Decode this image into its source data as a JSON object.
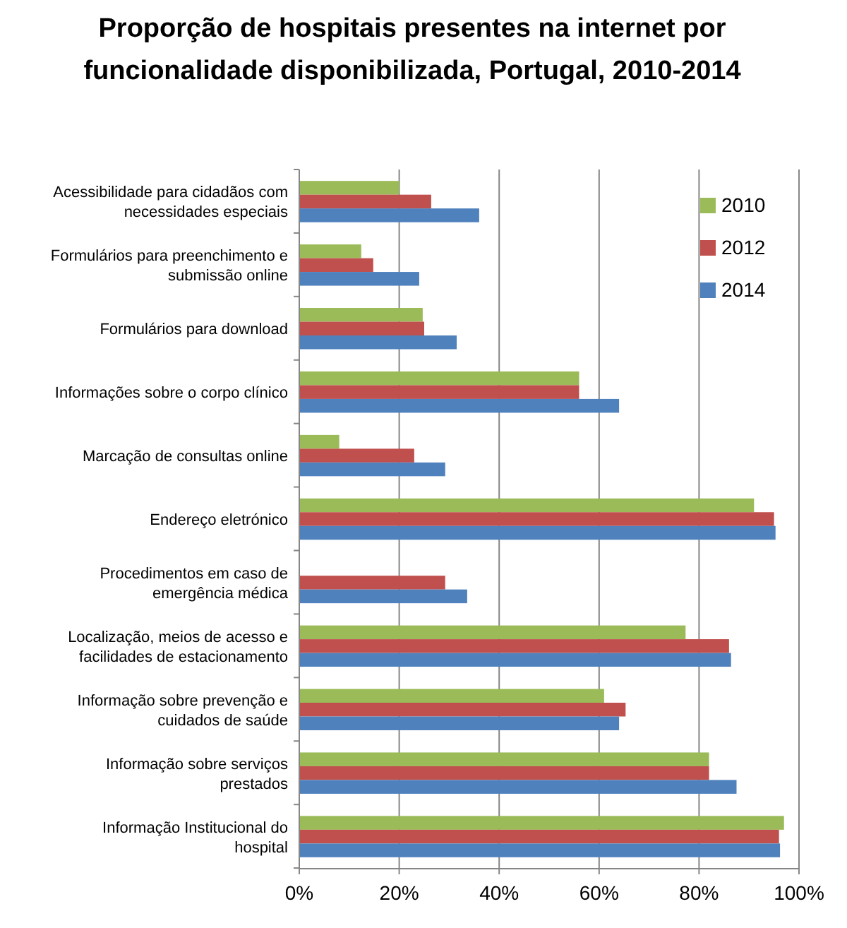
{
  "chart_data": {
    "type": "bar",
    "orientation": "horizontal",
    "title": "Proporção de hospitais presentes na internet por funcionalidade disponibilizada, Portugal, 2010-2014",
    "categories": [
      "Acessibilidade para cidadãos com necessidades especiais",
      "Formulários para preenchimento e submissão online",
      "Formulários para download",
      "Informações sobre o corpo clínico",
      "Marcação de consultas online",
      "Endereço eletrónico",
      "Procedimentos em caso de emergência médica",
      "Localização, meios de acesso e facilidades de estacionamento",
      "Informação sobre prevenção e cuidados de saúde",
      "Informação sobre serviços prestados",
      "Informação Institucional do hospital"
    ],
    "series": [
      {
        "name": "2010",
        "color": "#9bbb59",
        "values": [
          20,
          12.4,
          24.7,
          56,
          8,
          91,
          null,
          77.3,
          61,
          82,
          97
        ]
      },
      {
        "name": "2012",
        "color": "#c0504d",
        "values": [
          26.4,
          14.8,
          25,
          56,
          23,
          95,
          29.2,
          86,
          65.3,
          82,
          96
        ]
      },
      {
        "name": "2014",
        "color": "#4f81bd",
        "values": [
          36,
          24,
          31.5,
          64,
          29.2,
          95.3,
          33.6,
          86.4,
          64,
          87.5,
          96.2
        ]
      }
    ],
    "xlim": [
      0,
      100
    ],
    "xticks": [
      {
        "value": 0,
        "label": "0%"
      },
      {
        "value": 20,
        "label": "20%"
      },
      {
        "value": 40,
        "label": "40%"
      },
      {
        "value": 60,
        "label": "60%"
      },
      {
        "value": 80,
        "label": "80%"
      },
      {
        "value": 100,
        "label": "100%"
      }
    ],
    "grid": "x",
    "legend": "top right"
  }
}
